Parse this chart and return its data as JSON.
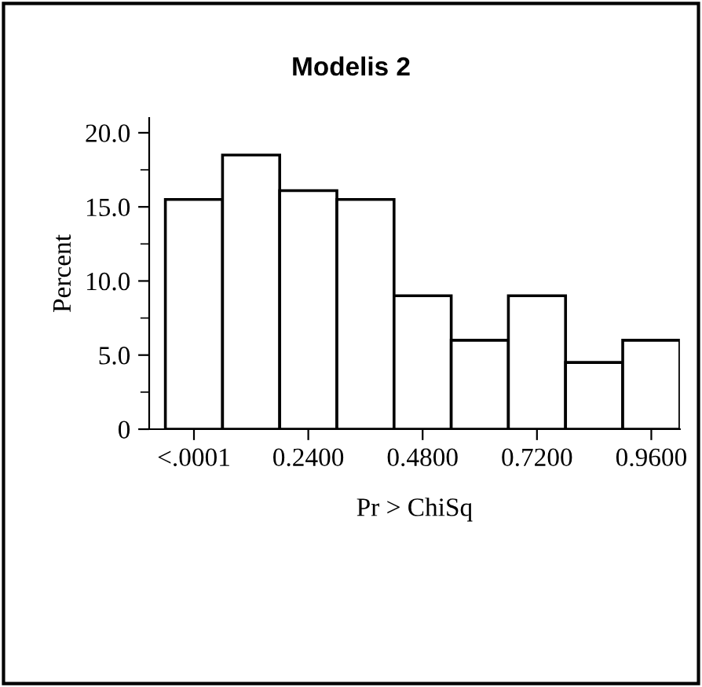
{
  "chart_data": {
    "type": "histogram",
    "title": "Modelis 2",
    "xlabel": "Pr > ChiSq",
    "ylabel": "Percent",
    "bins": [
      -0.06,
      0.06,
      0.18,
      0.3,
      0.42,
      0.54,
      0.66,
      0.78,
      0.9,
      1.02
    ],
    "values": [
      15.5,
      18.5,
      16.1,
      15.5,
      9.0,
      6.0,
      9.0,
      4.5,
      6.0
    ],
    "color": "#ffffff",
    "xlim": [
      -0.094,
      1.02
    ],
    "xticks": [
      {
        "value": 0,
        "label": "<.0001"
      },
      {
        "value": 0.24,
        "label": "0.2400"
      },
      {
        "value": 0.48,
        "label": "0.4800"
      },
      {
        "value": 0.72,
        "label": "0.7200"
      },
      {
        "value": 0.96,
        "label": "0.9600"
      }
    ],
    "ylim": [
      0,
      21
    ],
    "yticks": [
      0,
      {
        "value": 5,
        "label": "5.0"
      },
      {
        "value": 10,
        "label": "10.0"
      },
      {
        "value": 15,
        "label": "15.0"
      },
      {
        "value": 20,
        "label": "20.0"
      }
    ],
    "grid": false,
    "legend": false
  }
}
